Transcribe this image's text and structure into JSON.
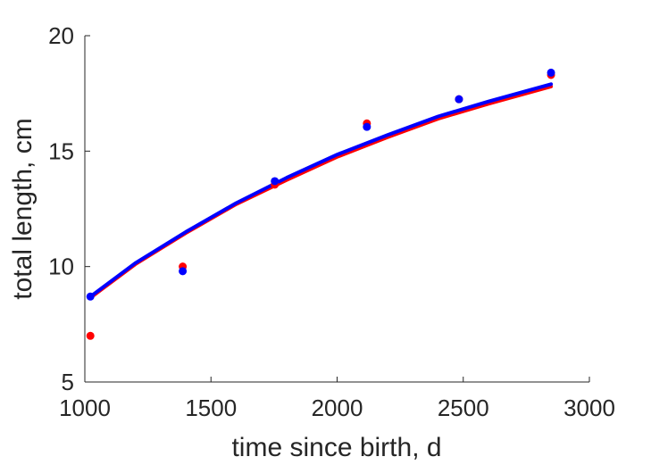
{
  "chart_data": {
    "type": "scatter",
    "title": "",
    "xlabel": "time since birth, d",
    "ylabel": "total length, cm",
    "xlim": [
      1000,
      3000
    ],
    "ylim": [
      5,
      20
    ],
    "xticks": [
      1000,
      1500,
      2000,
      2500,
      3000
    ],
    "yticks": [
      5,
      10,
      15,
      20
    ],
    "grid": false,
    "legend": "none",
    "series": [
      {
        "kind": "points",
        "color": "#ff0000",
        "x": [
          1022,
          1388,
          1753,
          2118,
          2483,
          2848
        ],
        "y": [
          7.0,
          10.0,
          13.55,
          16.2,
          17.25,
          18.3
        ]
      },
      {
        "kind": "points",
        "color": "#0000ff",
        "x": [
          1022,
          1388,
          1753,
          2118,
          2483,
          2848
        ],
        "y": [
          8.7,
          9.8,
          13.7,
          16.05,
          17.25,
          18.4
        ]
      },
      {
        "kind": "line",
        "color": "#ff0000",
        "x": [
          1022,
          1200,
          1400,
          1600,
          1800,
          2000,
          2200,
          2400,
          2600,
          2848
        ],
        "y": [
          8.65,
          10.1,
          11.45,
          12.7,
          13.75,
          14.75,
          15.6,
          16.4,
          17.05,
          17.8
        ]
      },
      {
        "kind": "line",
        "color": "#0000ff",
        "x": [
          1022,
          1200,
          1400,
          1600,
          1800,
          2000,
          2200,
          2400,
          2600,
          2848
        ],
        "y": [
          8.7,
          10.15,
          11.5,
          12.75,
          13.85,
          14.85,
          15.7,
          16.5,
          17.15,
          17.9
        ]
      }
    ]
  }
}
